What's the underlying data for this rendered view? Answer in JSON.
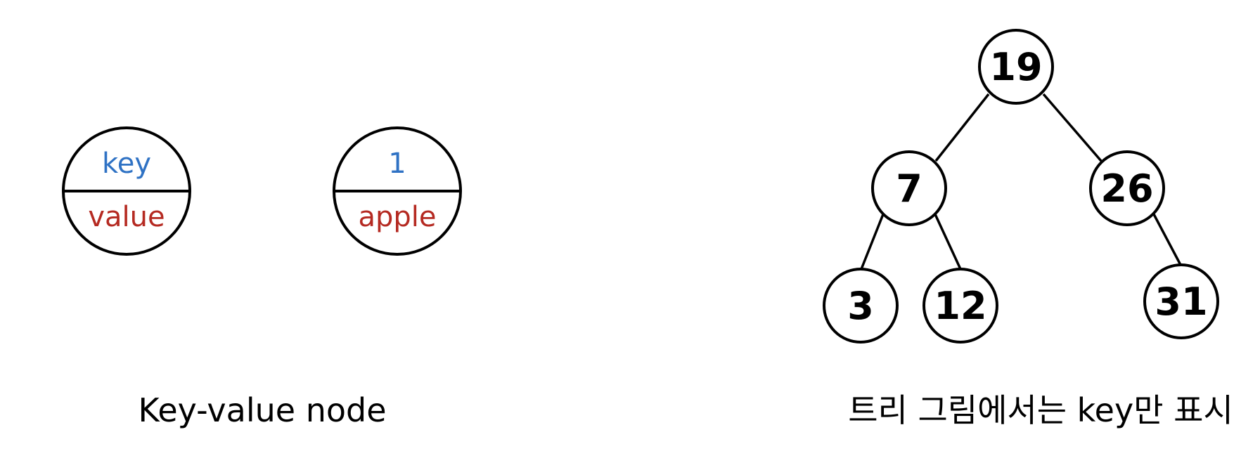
{
  "colors": {
    "key": "#2f72c4",
    "value": "#b52a22",
    "stroke": "#000000"
  },
  "left": {
    "template_node": {
      "key": "key",
      "value": "value"
    },
    "example_node": {
      "key": "1",
      "value": "apple"
    },
    "caption": "Key-value node"
  },
  "right": {
    "tree": {
      "nodes": [
        {
          "id": "n19",
          "key": "19"
        },
        {
          "id": "n7",
          "key": "7"
        },
        {
          "id": "n26",
          "key": "26"
        },
        {
          "id": "n3",
          "key": "3"
        },
        {
          "id": "n12",
          "key": "12"
        },
        {
          "id": "n31",
          "key": "31"
        }
      ],
      "edges": [
        {
          "from": "19",
          "to": "7"
        },
        {
          "from": "19",
          "to": "26"
        },
        {
          "from": "7",
          "to": "3"
        },
        {
          "from": "7",
          "to": "12"
        },
        {
          "from": "26",
          "to": "31"
        }
      ]
    },
    "caption": "트리 그림에서는 key만 표시"
  }
}
